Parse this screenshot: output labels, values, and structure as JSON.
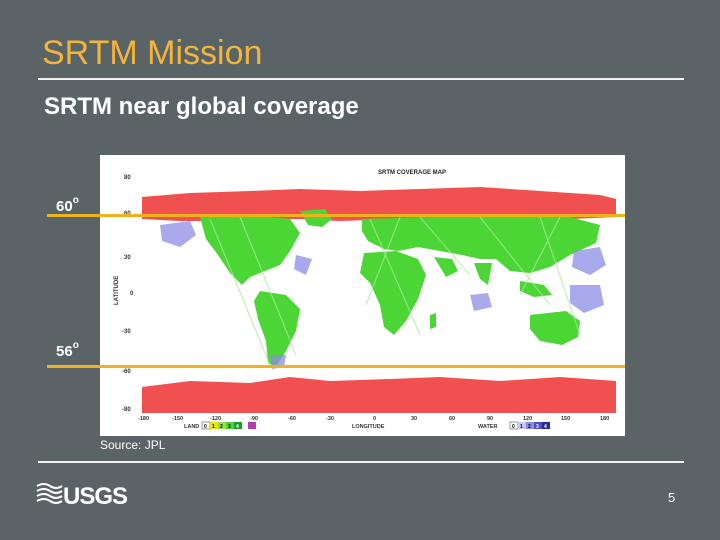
{
  "slide": {
    "title": "SRTM Mission",
    "subtitle": "SRTM near global coverage",
    "source": "Source: JPL",
    "page_number": "5",
    "logo_text": "USGS"
  },
  "lat_labels": {
    "north": "60",
    "south": "56",
    "degree": "o"
  },
  "map": {
    "title": "SRTM COVERAGE MAP",
    "y_axis_label": "LATITUDE",
    "x_axis_label": "LONGITUDE",
    "y_ticks": [
      "80",
      "60",
      "30",
      "0",
      "-30",
      "-60",
      "-80"
    ],
    "x_ticks": [
      "-180",
      "-150",
      "-120",
      "-90",
      "-60",
      "-30",
      "0",
      "30",
      "60",
      "90",
      "120",
      "150",
      "180"
    ],
    "land_legend_label": "LAND",
    "land_legend_values": [
      "0",
      "1",
      "2",
      "3",
      "4"
    ],
    "water_legend_label": "WATER",
    "water_legend_values": [
      "0",
      "1",
      "2",
      "3",
      "4"
    ]
  },
  "colors": {
    "background": "#5a6466",
    "title": "#f3b43c",
    "latitude_line": "#f0b21c",
    "land_uncovered": "#f05050",
    "land_covered": "#4cd636",
    "water_covered": "#8c8ce6"
  }
}
